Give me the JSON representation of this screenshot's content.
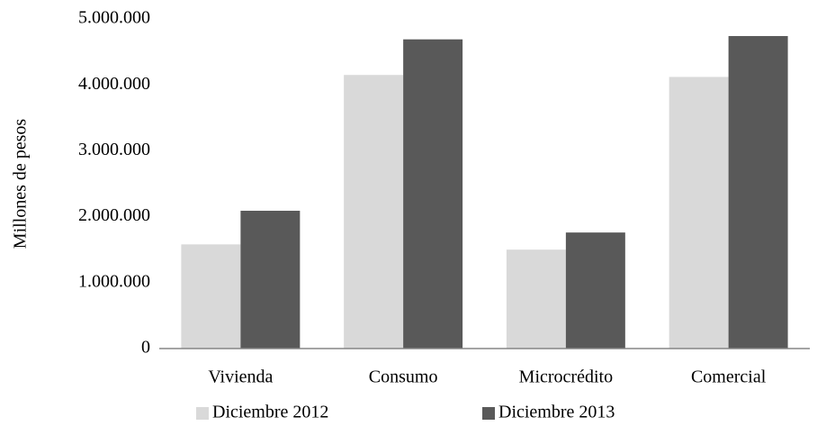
{
  "chart_data": {
    "type": "bar",
    "y_label": "Millones de pesos",
    "categories": [
      "Vivienda",
      "Consumo",
      "Microcrédito",
      "Comercial"
    ],
    "series": [
      {
        "name": "Diciembre 2012",
        "color": "#d9d9d9",
        "values": [
          1580000,
          4150000,
          1500000,
          4120000
        ]
      },
      {
        "name": "Diciembre 2013",
        "color": "#595959",
        "values": [
          2090000,
          4690000,
          1760000,
          4740000
        ]
      }
    ],
    "ylim": [
      0,
      5000000
    ],
    "yticks": [
      0,
      {
        "value": 1000000,
        "label": "1.000.000"
      },
      {
        "value": 2000000,
        "label": "2.000.000"
      },
      {
        "value": 3000000,
        "label": "3.000.000"
      },
      {
        "value": 4000000,
        "label": "4.000.000"
      },
      {
        "value": 5000000,
        "label": "5.000.000"
      }
    ],
    "grid": false
  }
}
